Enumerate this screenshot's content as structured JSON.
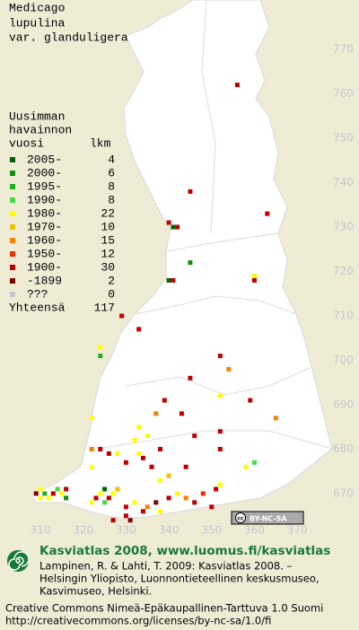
{
  "title": [
    "Medicago",
    "lupulina",
    "var. glanduligera"
  ],
  "legend": {
    "header": [
      "Uusimman",
      "havainnon"
    ],
    "year_heading": "vuosi",
    "count_heading": "lkm",
    "rows": [
      {
        "label": "2005-",
        "count": 4,
        "color": "#006400"
      },
      {
        "label": "2000-",
        "count": 6,
        "color": "#109010"
      },
      {
        "label": "1995-",
        "count": 8,
        "color": "#20b020"
      },
      {
        "label": "1990-",
        "count": 8,
        "color": "#44dd44"
      },
      {
        "label": "1980-",
        "count": 22,
        "color": "#ffff00"
      },
      {
        "label": "1970-",
        "count": 10,
        "color": "#f0c000"
      },
      {
        "label": "1960-",
        "count": 15,
        "color": "#ff8000"
      },
      {
        "label": "1950-",
        "count": 12,
        "color": "#e83000"
      },
      {
        "label": "1900-",
        "count": 30,
        "color": "#c00000"
      },
      {
        "label": "-1899",
        "count": 2,
        "color": "#800000"
      },
      {
        "label": "???",
        "count": 0,
        "color": "#c8c8c8"
      }
    ],
    "total": {
      "label": "Yhteensä",
      "count": 117
    }
  },
  "xticks": [
    310,
    320,
    330,
    340,
    350,
    360,
    370
  ],
  "yticks": [
    670,
    680,
    690,
    700,
    710,
    720,
    730,
    740,
    750,
    760,
    770
  ],
  "points": [
    [
      309,
      670,
      9
    ],
    [
      310,
      671,
      4
    ],
    [
      311,
      670,
      2
    ],
    [
      312,
      669,
      4
    ],
    [
      313,
      670,
      8
    ],
    [
      314,
      671,
      3
    ],
    [
      310,
      669,
      4
    ],
    [
      315,
      670,
      4
    ],
    [
      316,
      669,
      1
    ],
    [
      316,
      671,
      8
    ],
    [
      324,
      670,
      4
    ],
    [
      325,
      671,
      0
    ],
    [
      326,
      669,
      8
    ],
    [
      327,
      670,
      4
    ],
    [
      325,
      668,
      3
    ],
    [
      323,
      669,
      8
    ],
    [
      328,
      671,
      5
    ],
    [
      330,
      667,
      8
    ],
    [
      332,
      668,
      4
    ],
    [
      334,
      666,
      8
    ],
    [
      335,
      667,
      6
    ],
    [
      337,
      668,
      9
    ],
    [
      338,
      666,
      4
    ],
    [
      340,
      669,
      8
    ],
    [
      342,
      670,
      4
    ],
    [
      344,
      669,
      6
    ],
    [
      346,
      668,
      8
    ],
    [
      348,
      670,
      7
    ],
    [
      351,
      671,
      8
    ],
    [
      352,
      672,
      4
    ],
    [
      330,
      665,
      8
    ],
    [
      322,
      668,
      4
    ],
    [
      331,
      664,
      9
    ],
    [
      350,
      667,
      8
    ],
    [
      327,
      664,
      8
    ],
    [
      322,
      676,
      4
    ],
    [
      322,
      680,
      6
    ],
    [
      324,
      680,
      8
    ],
    [
      326,
      679,
      8
    ],
    [
      330,
      677,
      8
    ],
    [
      333,
      679,
      4
    ],
    [
      334,
      678,
      8
    ],
    [
      336,
      676,
      8
    ],
    [
      338,
      673,
      4
    ],
    [
      340,
      674,
      5
    ],
    [
      344,
      676,
      8
    ],
    [
      352,
      680,
      8
    ],
    [
      358,
      676,
      4
    ],
    [
      360,
      677,
      3
    ],
    [
      328,
      679,
      4
    ],
    [
      332,
      682,
      4
    ],
    [
      338,
      680,
      8
    ],
    [
      322,
      687,
      4
    ],
    [
      333,
      685,
      4
    ],
    [
      335,
      683,
      4
    ],
    [
      346,
      683,
      8
    ],
    [
      352,
      684,
      8
    ],
    [
      365,
      687,
      6
    ],
    [
      337,
      688,
      6
    ],
    [
      343,
      688,
      8
    ],
    [
      339,
      691,
      8
    ],
    [
      352,
      692,
      4
    ],
    [
      359,
      691,
      8
    ],
    [
      345,
      696,
      8
    ],
    [
      354,
      698,
      6
    ],
    [
      352,
      701,
      8
    ],
    [
      324,
      703,
      4
    ],
    [
      324,
      701,
      2
    ],
    [
      333,
      707,
      8
    ],
    [
      329,
      710,
      8
    ],
    [
      360,
      719,
      4
    ],
    [
      360,
      718,
      8
    ],
    [
      340,
      718,
      0
    ],
    [
      341,
      718,
      8
    ],
    [
      345,
      722,
      1
    ],
    [
      340,
      731,
      8
    ],
    [
      341,
      730,
      0
    ],
    [
      342,
      730,
      8
    ],
    [
      363,
      733,
      8
    ],
    [
      345,
      738,
      8
    ],
    [
      356,
      762,
      8
    ]
  ],
  "badge": {
    "icon": "cc",
    "text": "BY-NC-SA"
  },
  "logo_title": "Kasviatlas 2008, www.luomus.fi/kasviatlas",
  "citation": [
    "Lampinen, R. & Lahti, T. 2009: Kasviatlas 2008. –",
    "Helsingin Yliopisto, Luonnontieteellinen keskusmuseo,",
    "Kasvimuseo, Helsinki."
  ],
  "license": [
    "Creative Commons Nimeä-Epäkaupallinen-Tarttuva 1.0 Suomi",
    "http://creativecommons.org/licenses/by-nc-sa/1.0/fi"
  ]
}
